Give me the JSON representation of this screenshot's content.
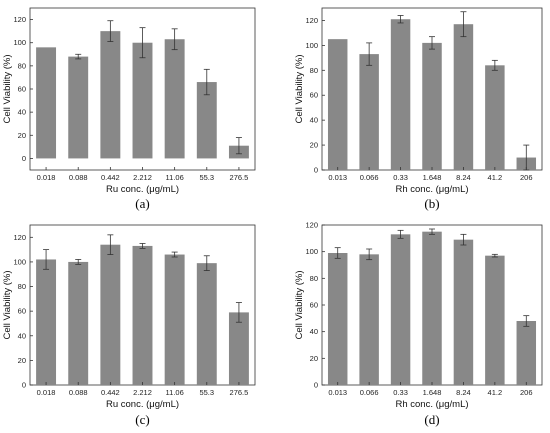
{
  "chart_data": [
    {
      "type": "bar",
      "panel_label": "(a)",
      "xlabel": "Ru conc. (μg/mL)",
      "ylabel": "Cell Viability (%)",
      "categories": [
        "0.018",
        "0.088",
        "0.442",
        "2.212",
        "11.06",
        "55.3",
        "276.5"
      ],
      "values": [
        96,
        88,
        110,
        100,
        103,
        66,
        11
      ],
      "errors": [
        0,
        2,
        9,
        13,
        9,
        11,
        7
      ],
      "ylim": [
        -10,
        130
      ],
      "yticks": [
        0,
        20,
        40,
        60,
        80,
        100,
        120
      ],
      "bar_color": "#888888"
    },
    {
      "type": "bar",
      "panel_label": "(b)",
      "xlabel": "Rh conc. (μg/mL)",
      "ylabel": "Cell Viability (%)",
      "categories": [
        "0.013",
        "0.066",
        "0.33",
        "1.648",
        "8.24",
        "41.2",
        "206"
      ],
      "values": [
        105,
        93,
        121,
        102,
        117,
        84,
        10
      ],
      "errors": [
        0,
        9,
        3,
        5,
        10,
        4,
        10
      ],
      "ylim": [
        0,
        130
      ],
      "yticks": [
        0,
        20,
        40,
        60,
        80,
        100,
        120
      ],
      "bar_color": "#888888"
    },
    {
      "type": "bar",
      "panel_label": "(c)",
      "xlabel": "Ru conc. (μg/mL)",
      "ylabel": "Cell Viability (%)",
      "categories": [
        "0.018",
        "0.088",
        "0.442",
        "2.212",
        "11.06",
        "55.3",
        "276.5"
      ],
      "values": [
        102,
        100,
        114,
        113,
        106,
        99,
        59
      ],
      "errors": [
        8,
        2,
        8,
        2,
        2,
        6,
        8
      ],
      "ylim": [
        0,
        130
      ],
      "yticks": [
        0,
        20,
        40,
        60,
        80,
        100,
        120
      ],
      "bar_color": "#888888"
    },
    {
      "type": "bar",
      "panel_label": "(d)",
      "xlabel": "Rh conc. (μg/mL)",
      "ylabel": "Cell Viability (%)",
      "categories": [
        "0.013",
        "0.066",
        "0.33",
        "1.648",
        "8.24",
        "41.2",
        "206"
      ],
      "values": [
        99,
        98,
        113,
        115,
        109,
        97,
        48
      ],
      "errors": [
        4,
        4,
        3,
        2,
        4,
        1,
        4
      ],
      "ylim": [
        0,
        120
      ],
      "yticks": [
        0,
        20,
        40,
        60,
        80,
        100,
        120
      ],
      "bar_color": "#888888"
    }
  ]
}
